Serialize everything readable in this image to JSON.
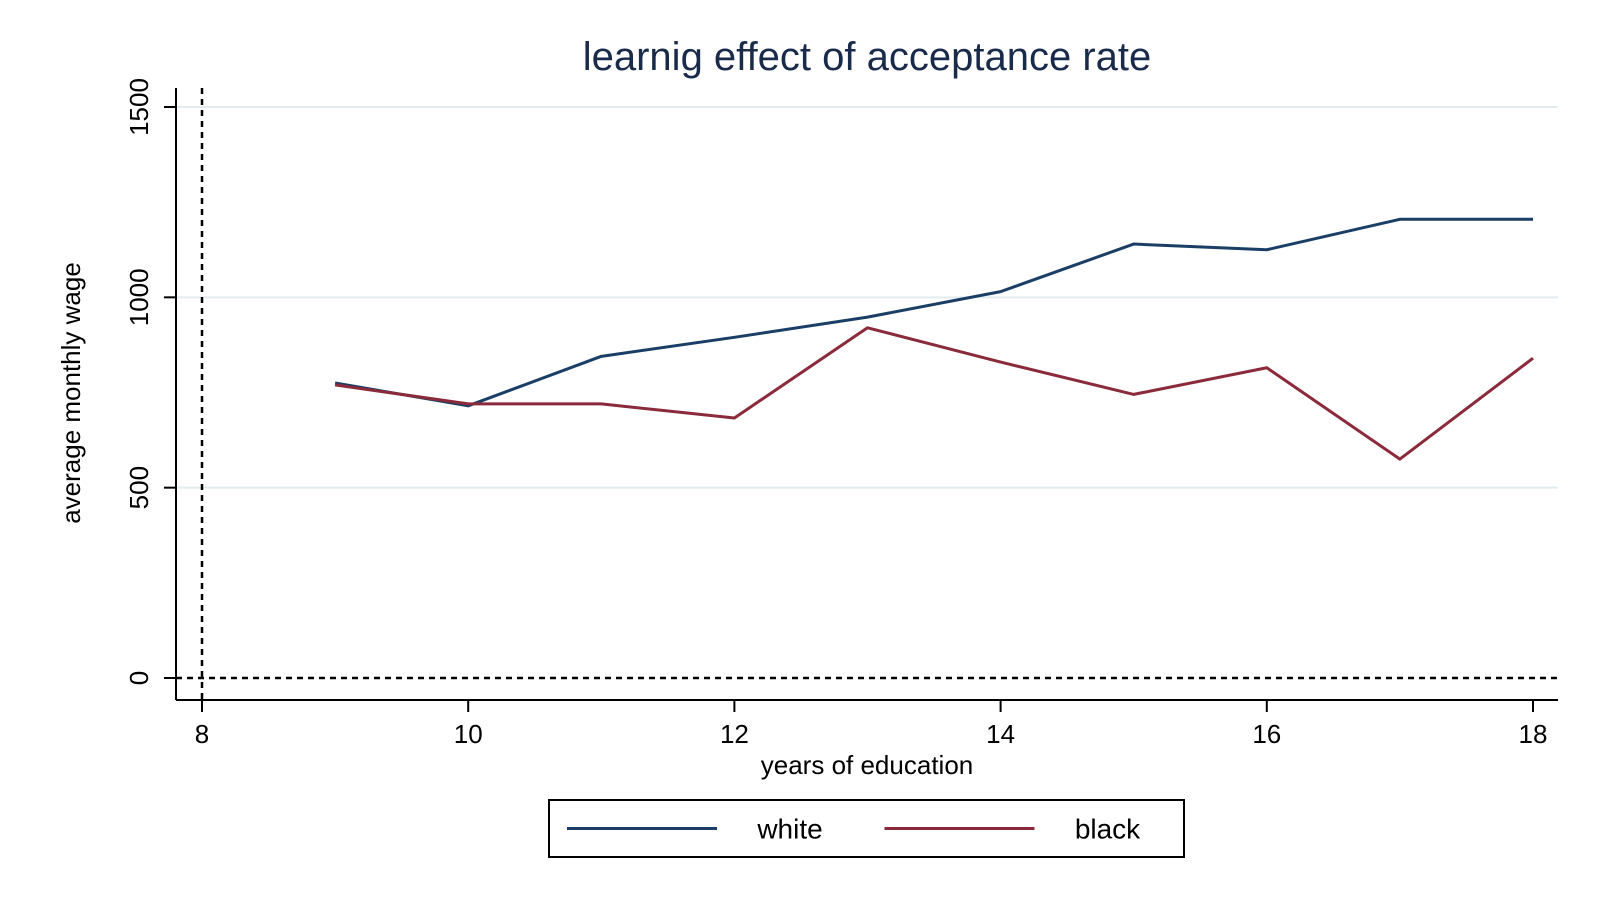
{
  "chart_data": {
    "type": "line",
    "title": "learnig effect of acceptance rate",
    "xlabel": "years of education",
    "ylabel": "average monthly wage",
    "xlim": [
      8,
      18
    ],
    "ylim": [
      0,
      1500
    ],
    "xticks": [
      8,
      10,
      12,
      14,
      16,
      18
    ],
    "yticks": [
      0,
      500,
      1000,
      1500
    ],
    "grid": true,
    "reference_lines": {
      "x": 8,
      "y": 0,
      "style": "dashed"
    },
    "legend": {
      "placement": "bottom",
      "entries": [
        "white",
        "black"
      ]
    },
    "x": [
      9,
      10,
      11,
      12,
      13,
      14,
      15,
      16,
      17,
      18
    ],
    "series": [
      {
        "name": "white",
        "color": "#1a3e66",
        "values": [
          775,
          715,
          845,
          895,
          948,
          1015,
          1140,
          1125,
          1205,
          1205
        ]
      },
      {
        "name": "black",
        "color": "#8b2a3a",
        "values": [
          770,
          720,
          720,
          683,
          920,
          830,
          745,
          815,
          575,
          840
        ]
      }
    ]
  }
}
